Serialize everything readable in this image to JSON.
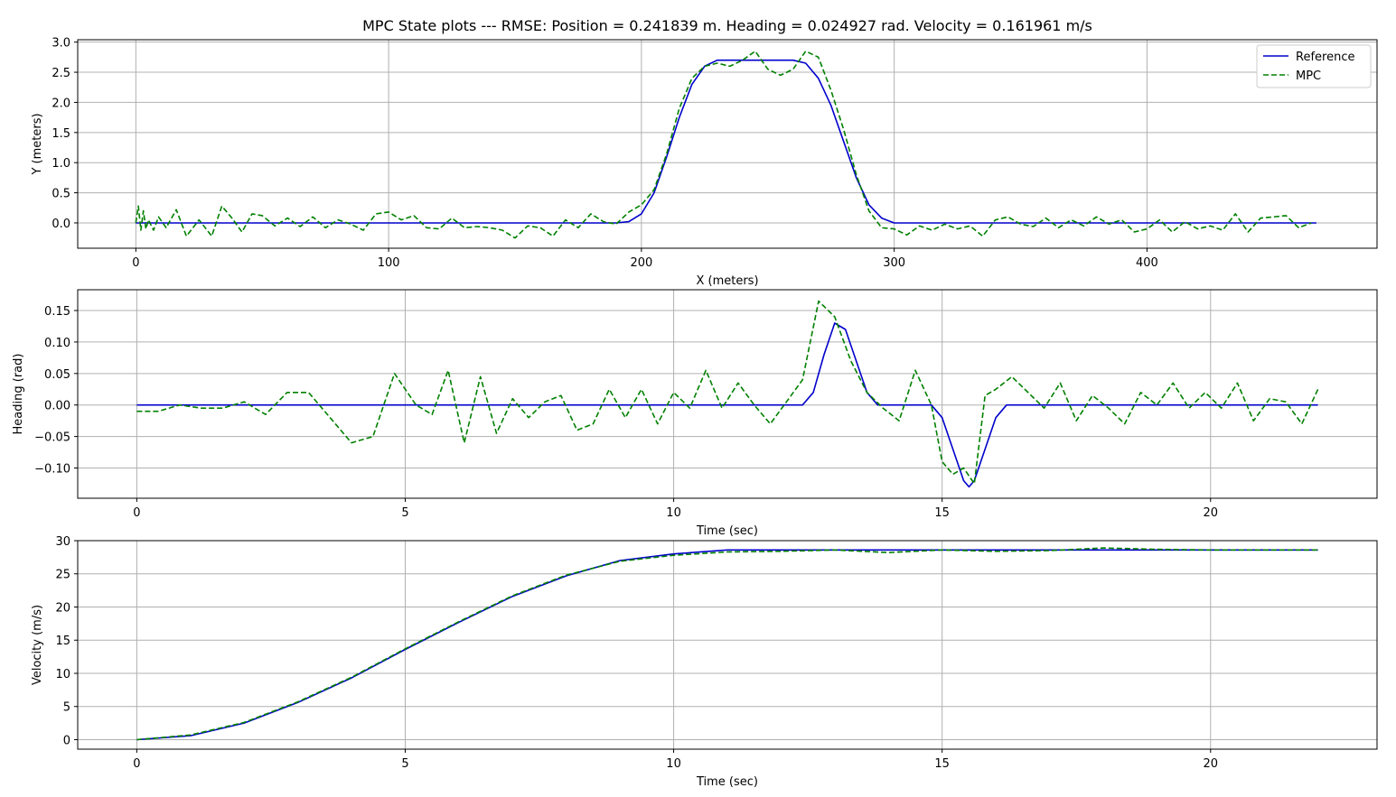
{
  "title": "MPC State plots --- RMSE: Position = 0.241839 m.   Heading = 0.024927 rad.  Velocity = 0.161961 m/s",
  "colors": {
    "reference": "#0000cc",
    "mpc": "#008000",
    "grid": "#b0b0b0",
    "axes": "#000000"
  },
  "legend": {
    "position": "top-right",
    "entries": [
      " Reference",
      " MPC"
    ]
  },
  "chart_data": [
    {
      "type": "line",
      "xlabel": "X (meters)",
      "ylabel": "Y (meters)",
      "xlim": [
        -23,
        491
      ],
      "ylim": [
        -0.42,
        3.04
      ],
      "xticks": [
        0,
        100,
        200,
        300,
        400
      ],
      "yticks": [
        0.0,
        0.5,
        1.0,
        1.5,
        2.0,
        2.5,
        3.0
      ],
      "xtick_labels": [
        "0",
        "100",
        "200",
        "300",
        "400"
      ],
      "ytick_labels": [
        "0.0",
        "0.5",
        "1.0",
        "1.5",
        "2.0",
        "2.5",
        "3.0"
      ],
      "grid": true,
      "legend_position": "top-right",
      "series": [
        {
          "name": "Reference",
          "style": "solid",
          "x": [
            0,
            190,
            195,
            200,
            205,
            210,
            215,
            220,
            225,
            230,
            240,
            250,
            260,
            265,
            270,
            275,
            280,
            285,
            290,
            295,
            300,
            467
          ],
          "y": [
            0,
            0,
            0.02,
            0.15,
            0.5,
            1.1,
            1.75,
            2.3,
            2.6,
            2.7,
            2.7,
            2.7,
            2.7,
            2.65,
            2.4,
            1.95,
            1.35,
            0.75,
            0.3,
            0.08,
            0,
            0
          ]
        },
        {
          "name": "MPC",
          "style": "dashed",
          "x": [
            0,
            1,
            2,
            3,
            4,
            5,
            7,
            9,
            12,
            16,
            20,
            25,
            30,
            34,
            38,
            42,
            46,
            50,
            55,
            60,
            65,
            70,
            75,
            80,
            85,
            90,
            95,
            100,
            105,
            110,
            115,
            120,
            125,
            130,
            135,
            140,
            145,
            150,
            155,
            160,
            165,
            170,
            175,
            180,
            185,
            190,
            195,
            200,
            205,
            210,
            215,
            220,
            225,
            230,
            235,
            240,
            245,
            250,
            255,
            260,
            265,
            270,
            275,
            280,
            285,
            290,
            295,
            300,
            305,
            310,
            315,
            320,
            325,
            330,
            335,
            340,
            345,
            350,
            355,
            360,
            365,
            370,
            375,
            380,
            385,
            390,
            395,
            400,
            405,
            410,
            415,
            420,
            425,
            430,
            435,
            440,
            445,
            450,
            455,
            460,
            465
          ],
          "y": [
            0,
            0.28,
            -0.12,
            0.2,
            -0.1,
            0.05,
            -0.12,
            0.1,
            -0.08,
            0.22,
            -0.22,
            0.05,
            -0.22,
            0.28,
            0.08,
            -0.15,
            0.15,
            0.12,
            -0.05,
            0.08,
            -0.06,
            0.1,
            -0.08,
            0.05,
            -0.02,
            -0.12,
            0.15,
            0.18,
            0.05,
            0.12,
            -0.08,
            -0.1,
            0.08,
            -0.08,
            -0.06,
            -0.08,
            -0.12,
            -0.25,
            -0.05,
            -0.08,
            -0.22,
            0.05,
            -0.08,
            0.15,
            0.02,
            -0.02,
            0.18,
            0.3,
            0.55,
            1.15,
            1.9,
            2.4,
            2.6,
            2.65,
            2.6,
            2.7,
            2.85,
            2.55,
            2.45,
            2.55,
            2.85,
            2.75,
            2.2,
            1.55,
            0.8,
            0.2,
            -0.08,
            -0.1,
            -0.2,
            -0.05,
            -0.12,
            -0.02,
            -0.1,
            -0.05,
            -0.22,
            0.05,
            0.1,
            -0.02,
            -0.06,
            0.08,
            -0.08,
            0.05,
            -0.05,
            0.1,
            -0.02,
            0.05,
            -0.15,
            -0.1,
            0.05,
            -0.15,
            0.02,
            -0.1,
            -0.05,
            -0.12,
            0.15,
            -0.15,
            0.08,
            0.1,
            0.12,
            -0.08,
            0
          ]
        }
      ]
    },
    {
      "type": "line",
      "xlabel": "Time (sec)",
      "ylabel": "Heading (rad)",
      "xlim": [
        -1.1,
        23.1
      ],
      "ylim": [
        -0.148,
        0.183
      ],
      "xticks": [
        0,
        5,
        10,
        15,
        20
      ],
      "yticks": [
        -0.1,
        -0.05,
        0.0,
        0.05,
        0.1,
        0.15
      ],
      "xtick_labels": [
        "0",
        "5",
        "10",
        "15",
        "20"
      ],
      "ytick_labels": [
        "−0.10",
        "−0.05",
        "0.00",
        "0.05",
        "0.10",
        "0.15"
      ],
      "grid": true,
      "series": [
        {
          "name": "Reference",
          "style": "solid",
          "x": [
            0,
            12.4,
            12.6,
            12.8,
            13.0,
            13.2,
            13.4,
            13.6,
            13.8,
            14.8,
            15.0,
            15.2,
            15.4,
            15.5,
            15.6,
            15.8,
            16.0,
            16.2,
            16.4,
            22.0
          ],
          "y": [
            0,
            0,
            0.02,
            0.08,
            0.13,
            0.12,
            0.07,
            0.02,
            0,
            0,
            -0.02,
            -0.07,
            -0.12,
            -0.13,
            -0.12,
            -0.07,
            -0.02,
            0,
            0,
            0
          ]
        },
        {
          "name": "MPC",
          "style": "dashed",
          "x": [
            0,
            0.4,
            0.8,
            1.2,
            1.6,
            2.0,
            2.4,
            2.8,
            3.2,
            3.6,
            4.0,
            4.4,
            4.8,
            5.2,
            5.5,
            5.8,
            6.1,
            6.4,
            6.7,
            7.0,
            7.3,
            7.6,
            7.9,
            8.2,
            8.5,
            8.8,
            9.1,
            9.4,
            9.7,
            10.0,
            10.3,
            10.6,
            10.9,
            11.2,
            11.5,
            11.8,
            12.1,
            12.4,
            12.7,
            13.0,
            13.3,
            13.6,
            13.9,
            14.2,
            14.5,
            14.8,
            15.0,
            15.2,
            15.4,
            15.6,
            15.8,
            16.0,
            16.3,
            16.6,
            16.9,
            17.2,
            17.5,
            17.8,
            18.1,
            18.4,
            18.7,
            19.0,
            19.3,
            19.6,
            19.9,
            20.2,
            20.5,
            20.8,
            21.1,
            21.4,
            21.7,
            22.0
          ],
          "y": [
            -0.01,
            -0.01,
            0.0,
            -0.005,
            -0.005,
            0.005,
            -0.015,
            0.02,
            0.02,
            -0.02,
            -0.06,
            -0.05,
            0.05,
            0.0,
            -0.015,
            0.055,
            -0.06,
            0.045,
            -0.045,
            0.01,
            -0.02,
            0.005,
            0.015,
            -0.04,
            -0.03,
            0.025,
            -0.02,
            0.025,
            -0.03,
            0.02,
            -0.005,
            0.055,
            -0.005,
            0.035,
            0.0,
            -0.03,
            0.005,
            0.04,
            0.165,
            0.14,
            0.07,
            0.02,
            -0.005,
            -0.025,
            0.055,
            0.0,
            -0.09,
            -0.11,
            -0.1,
            -0.125,
            0.015,
            0.025,
            0.045,
            0.02,
            -0.005,
            0.035,
            -0.025,
            0.015,
            -0.005,
            -0.03,
            0.02,
            0.0,
            0.035,
            -0.005,
            0.02,
            -0.005,
            0.035,
            -0.025,
            0.01,
            0.005,
            -0.03,
            0.025
          ]
        }
      ]
    },
    {
      "type": "line",
      "xlabel": "Time (sec)",
      "ylabel": "Velocity (m/s)",
      "xlim": [
        -1.1,
        23.1
      ],
      "ylim": [
        -1.43,
        30.0
      ],
      "xticks": [
        0,
        5,
        10,
        15,
        20
      ],
      "yticks": [
        0,
        5,
        10,
        15,
        20,
        25,
        30
      ],
      "xtick_labels": [
        "0",
        "5",
        "10",
        "15",
        "20"
      ],
      "ytick_labels": [
        "0",
        "5",
        "10",
        "15",
        "20",
        "25",
        "30"
      ],
      "grid": true,
      "series": [
        {
          "name": "Reference",
          "style": "solid",
          "x": [
            0,
            1,
            2,
            3,
            4,
            5,
            6,
            7,
            8,
            9,
            10,
            11,
            12,
            13,
            14,
            15,
            16,
            17,
            18,
            19,
            20,
            21,
            22
          ],
          "y": [
            0,
            0.6,
            2.5,
            5.6,
            9.3,
            13.6,
            17.7,
            21.6,
            24.7,
            27.0,
            28.0,
            28.6,
            28.6,
            28.6,
            28.6,
            28.6,
            28.6,
            28.6,
            28.6,
            28.6,
            28.6,
            28.6,
            28.6
          ]
        },
        {
          "name": "MPC",
          "style": "dashed",
          "x": [
            0,
            1,
            2,
            3,
            4,
            5,
            6,
            7,
            8,
            9,
            10,
            11,
            12,
            13,
            14,
            15,
            16,
            17,
            18,
            19,
            20,
            21,
            22
          ],
          "y": [
            0,
            0.7,
            2.6,
            5.7,
            9.4,
            13.7,
            17.8,
            21.7,
            24.8,
            26.9,
            27.8,
            28.3,
            28.4,
            28.6,
            28.2,
            28.6,
            28.4,
            28.5,
            28.9,
            28.7,
            28.6,
            28.6,
            28.6
          ]
        }
      ]
    }
  ]
}
